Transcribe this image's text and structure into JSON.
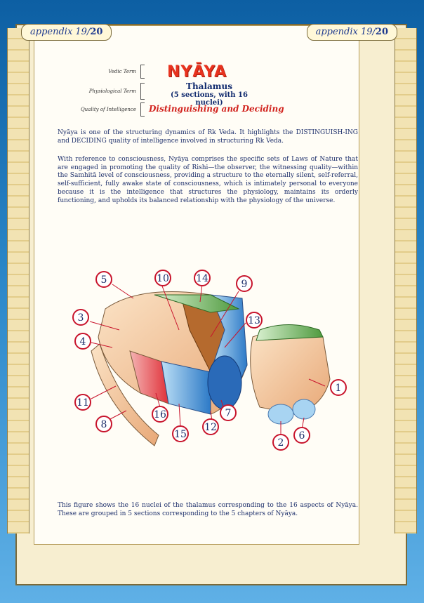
{
  "header_tabs": {
    "left": "appendix 19/",
    "left_bold": "20",
    "right": "appendix 19/",
    "right_bold": "20"
  },
  "labels": {
    "vedic_term": "Vedic Term",
    "physiological_term": "Physiological Term",
    "quality_of_intelligence": "Quality of Intelligence"
  },
  "title": "NYĀYA",
  "physiological": {
    "line1": "Thalamus",
    "line2": "(5 sections, with 16 nuclei)"
  },
  "quality": "Distinguishing and Deciding",
  "paragraphs": [
    "Nyāya is one of the structuring dynamics of Rk Veda. It highlights the DISTINGUISH-ING and DECIDING quality of intelligence involved in structuring Rk Veda.",
    "With reference to consciousness, Nyāya comprises the specific sets of Laws of Nature that are engaged in promoting the quality of Rishi—the observer, the witnessing quality—within the Samhitā level of consciousness, providing a structure to the eternally silent, self-referral, self-sufficient, fully awake state of consciousness, which is intimately personal to everyone because it is the intelligence that structures the physiology, maintains its orderly functioning, and upholds its balanced relationship with the physiology of the universe."
  ],
  "figure_labels": [
    "1",
    "2",
    "3",
    "4",
    "5",
    "6",
    "7",
    "8",
    "9",
    "10",
    "11",
    "12",
    "13",
    "14",
    "15",
    "16"
  ],
  "caption": "This figure shows the 16 nuclei of the thalamus corresponding to the 16 aspects of Nyāya. These are grouped in 5 sections corresponding to the 5 chapters of Nyāya.",
  "colors": {
    "title": "#e8331f",
    "quality": "#d2241f",
    "text": "#1d2f6b",
    "label_circle": "#c8142c"
  }
}
